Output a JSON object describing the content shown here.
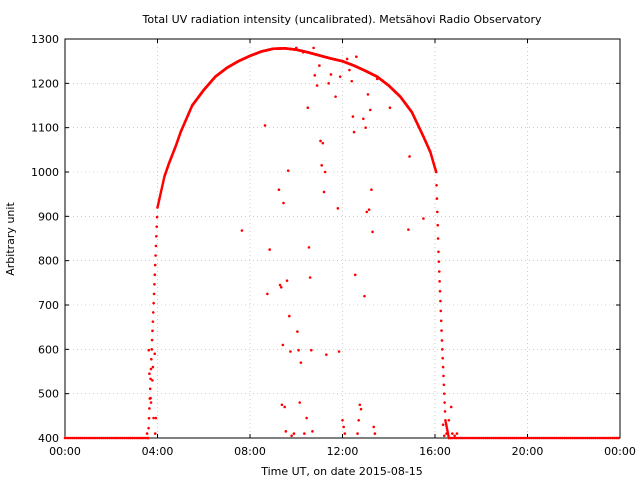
{
  "chart_data": {
    "type": "scatter",
    "title": "Total UV radiation intensity (uncalibrated). Metsähovi Radio Observatory",
    "xlabel": "Time UT, on date 2015-08-15",
    "ylabel": "Arbitrary unit",
    "xlim": [
      0,
      24
    ],
    "ylim": [
      400,
      1300
    ],
    "x_unit": "hours UT",
    "x_ticks": [
      {
        "value": 0,
        "label": "00:00"
      },
      {
        "value": 4,
        "label": "04:00"
      },
      {
        "value": 8,
        "label": "08:00"
      },
      {
        "value": 12,
        "label": "12:00"
      },
      {
        "value": 16,
        "label": "16:00"
      },
      {
        "value": 20,
        "label": "20:00"
      },
      {
        "value": 24,
        "label": "00:00"
      }
    ],
    "y_ticks": [
      400,
      500,
      600,
      700,
      800,
      900,
      1000,
      1100,
      1200,
      1300
    ],
    "grid": true,
    "legend": "none",
    "point_color": "#ff0000",
    "series": [
      {
        "name": "",
        "night_level": 400,
        "curve": [
          [
            3.6,
            400
          ],
          [
            3.75,
            600
          ],
          [
            3.85,
            725
          ],
          [
            4.0,
            920
          ],
          [
            4.3,
            990
          ],
          [
            4.5,
            1020
          ],
          [
            4.8,
            1060
          ],
          [
            5.0,
            1090
          ],
          [
            5.5,
            1150
          ],
          [
            6.0,
            1185
          ],
          [
            6.5,
            1215
          ],
          [
            7.0,
            1235
          ],
          [
            7.5,
            1250
          ],
          [
            8.0,
            1262
          ],
          [
            8.5,
            1272
          ],
          [
            9.0,
            1278
          ],
          [
            9.5,
            1279
          ],
          [
            10.0,
            1276
          ],
          [
            10.5,
            1270
          ],
          [
            11.0,
            1263
          ],
          [
            11.5,
            1256
          ],
          [
            12.0,
            1250
          ],
          [
            12.5,
            1240
          ],
          [
            13.0,
            1228
          ],
          [
            13.5,
            1215
          ],
          [
            14.0,
            1195
          ],
          [
            14.5,
            1170
          ],
          [
            15.0,
            1135
          ],
          [
            15.5,
            1080
          ],
          [
            15.8,
            1045
          ],
          [
            16.05,
            1000
          ],
          [
            16.15,
            820
          ],
          [
            16.3,
            620
          ],
          [
            16.45,
            440
          ],
          [
            16.6,
            400
          ]
        ],
        "scattered_points": [
          [
            3.55,
            410
          ],
          [
            3.62,
            598
          ],
          [
            3.65,
            545
          ],
          [
            3.7,
            490
          ],
          [
            3.72,
            480
          ],
          [
            3.78,
            530
          ],
          [
            3.8,
            560
          ],
          [
            3.83,
            445
          ],
          [
            3.88,
            590
          ],
          [
            3.9,
            410
          ],
          [
            3.93,
            445
          ],
          [
            7.65,
            868
          ],
          [
            8.65,
            1105
          ],
          [
            8.75,
            725
          ],
          [
            8.85,
            825
          ],
          [
            9.25,
            960
          ],
          [
            9.3,
            745
          ],
          [
            9.35,
            740
          ],
          [
            9.38,
            475
          ],
          [
            9.42,
            610
          ],
          [
            9.45,
            930
          ],
          [
            9.5,
            470
          ],
          [
            9.55,
            415
          ],
          [
            9.6,
            755
          ],
          [
            9.65,
            1003
          ],
          [
            9.7,
            675
          ],
          [
            9.75,
            595
          ],
          [
            9.8,
            405
          ],
          [
            9.9,
            410
          ],
          [
            10.0,
            1280
          ],
          [
            10.05,
            640
          ],
          [
            10.1,
            598
          ],
          [
            10.15,
            480
          ],
          [
            10.2,
            570
          ],
          [
            10.3,
            1270
          ],
          [
            10.35,
            410
          ],
          [
            10.45,
            445
          ],
          [
            10.5,
            1145
          ],
          [
            10.55,
            830
          ],
          [
            10.6,
            762
          ],
          [
            10.65,
            598
          ],
          [
            10.7,
            415
          ],
          [
            10.75,
            1280
          ],
          [
            10.8,
            1218
          ],
          [
            10.9,
            1195
          ],
          [
            11.0,
            1240
          ],
          [
            11.05,
            1070
          ],
          [
            11.1,
            1015
          ],
          [
            11.15,
            1065
          ],
          [
            11.2,
            955
          ],
          [
            11.25,
            1000
          ],
          [
            11.3,
            588
          ],
          [
            11.4,
            1200
          ],
          [
            11.5,
            1220
          ],
          [
            11.7,
            1170
          ],
          [
            11.8,
            918
          ],
          [
            11.85,
            595
          ],
          [
            11.9,
            1215
          ],
          [
            12.0,
            440
          ],
          [
            12.05,
            425
          ],
          [
            12.1,
            410
          ],
          [
            12.2,
            1255
          ],
          [
            12.3,
            1230
          ],
          [
            12.4,
            1205
          ],
          [
            12.45,
            1125
          ],
          [
            12.5,
            1090
          ],
          [
            12.55,
            768
          ],
          [
            12.6,
            1260
          ],
          [
            12.65,
            410
          ],
          [
            12.7,
            440
          ],
          [
            12.75,
            475
          ],
          [
            12.8,
            465
          ],
          [
            12.9,
            1120
          ],
          [
            12.95,
            720
          ],
          [
            13.0,
            1100
          ],
          [
            13.05,
            910
          ],
          [
            13.1,
            1175
          ],
          [
            13.15,
            915
          ],
          [
            13.2,
            1140
          ],
          [
            13.25,
            960
          ],
          [
            13.3,
            865
          ],
          [
            13.35,
            425
          ],
          [
            13.4,
            410
          ],
          [
            13.5,
            1210
          ],
          [
            14.05,
            1145
          ],
          [
            14.85,
            870
          ],
          [
            14.9,
            1035
          ],
          [
            15.5,
            895
          ],
          [
            16.35,
            430
          ],
          [
            16.4,
            405
          ],
          [
            16.5,
            410
          ],
          [
            16.6,
            440
          ],
          [
            16.7,
            470
          ],
          [
            16.75,
            410
          ],
          [
            16.85,
            405
          ],
          [
            16.95,
            410
          ]
        ]
      }
    ]
  }
}
